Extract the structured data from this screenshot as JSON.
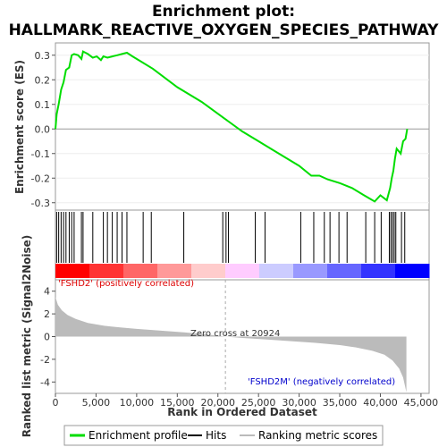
{
  "chart_data": {
    "type": "line",
    "title_line1": "Enrichment plot:",
    "title_line2": "HALLMARK_REACTIVE_OXYGEN_SPECIES_PATHWAY",
    "es_panel": {
      "ylabel": "Enrichment score (ES)",
      "ylim": [
        -0.33,
        0.35
      ],
      "yticks": [
        "0.3",
        "0.2",
        "0.1",
        "0.0",
        "-0.1",
        "-0.2",
        "-0.3"
      ],
      "ytick_values": [
        0.3,
        0.2,
        0.1,
        0.0,
        -0.1,
        -0.2,
        -0.3
      ],
      "series_color": "#00dd00",
      "points": [
        [
          0,
          0.0
        ],
        [
          150,
          0.06
        ],
        [
          400,
          0.1
        ],
        [
          700,
          0.16
        ],
        [
          1000,
          0.19
        ],
        [
          1300,
          0.24
        ],
        [
          1700,
          0.25
        ],
        [
          2000,
          0.3
        ],
        [
          2300,
          0.305
        ],
        [
          2800,
          0.3
        ],
        [
          3200,
          0.285
        ],
        [
          3400,
          0.315
        ],
        [
          4000,
          0.305
        ],
        [
          4600,
          0.29
        ],
        [
          5100,
          0.295
        ],
        [
          5600,
          0.28
        ],
        [
          5900,
          0.295
        ],
        [
          6400,
          0.29
        ],
        [
          7000,
          0.295
        ],
        [
          7600,
          0.3
        ],
        [
          8200,
          0.305
        ],
        [
          8800,
          0.31
        ],
        [
          9500,
          0.295
        ],
        [
          10500,
          0.275
        ],
        [
          12000,
          0.245
        ],
        [
          15000,
          0.17
        ],
        [
          18000,
          0.11
        ],
        [
          20924,
          0.04
        ],
        [
          23000,
          -0.01
        ],
        [
          25000,
          -0.05
        ],
        [
          27000,
          -0.09
        ],
        [
          30000,
          -0.15
        ],
        [
          31500,
          -0.19
        ],
        [
          32500,
          -0.19
        ],
        [
          33500,
          -0.205
        ],
        [
          35000,
          -0.22
        ],
        [
          36500,
          -0.24
        ],
        [
          38000,
          -0.27
        ],
        [
          39300,
          -0.295
        ],
        [
          40000,
          -0.27
        ],
        [
          40800,
          -0.29
        ],
        [
          41200,
          -0.24
        ],
        [
          41400,
          -0.2
        ],
        [
          41600,
          -0.17
        ],
        [
          41800,
          -0.12
        ],
        [
          42000,
          -0.08
        ],
        [
          42500,
          -0.1
        ],
        [
          42800,
          -0.05
        ],
        [
          43100,
          -0.04
        ],
        [
          43300,
          0.0
        ]
      ]
    },
    "hits": [
      150,
      400,
      700,
      1000,
      1300,
      1700,
      2000,
      2300,
      3200,
      3400,
      4600,
      5900,
      6400,
      7000,
      7600,
      8200,
      8800,
      10800,
      11800,
      15800,
      20600,
      21000,
      21300,
      24600,
      25800,
      30200,
      31800,
      33100,
      33800,
      34900,
      35900,
      38200,
      39300,
      40100,
      41100,
      41300,
      41500,
      41700,
      41900,
      42600,
      43000
    ],
    "heatmap_colors": [
      "#ff0000",
      "#ff3333",
      "#ff6666",
      "#ff9999",
      "#ffcccc",
      "#ffccff",
      "#ccccff",
      "#9999ff",
      "#6666ff",
      "#3333ff",
      "#0000ff"
    ],
    "rank_panel": {
      "ylabel": "Ranked list metric (Signal2Noise)",
      "ylim": [
        -5,
        5
      ],
      "yticks": [
        "4",
        "2",
        "0",
        "-2",
        "-4"
      ],
      "ytick_values": [
        4,
        2,
        0,
        -2,
        -4
      ],
      "curve": [
        [
          0,
          3.5
        ],
        [
          300,
          2.8
        ],
        [
          800,
          2.3
        ],
        [
          1500,
          1.9
        ],
        [
          2500,
          1.55
        ],
        [
          4000,
          1.2
        ],
        [
          6000,
          0.95
        ],
        [
          8000,
          0.8
        ],
        [
          10000,
          0.68
        ],
        [
          13000,
          0.52
        ],
        [
          16000,
          0.36
        ],
        [
          19000,
          0.16
        ],
        [
          20924,
          0.0
        ],
        [
          23000,
          -0.12
        ],
        [
          26000,
          -0.26
        ],
        [
          29000,
          -0.4
        ],
        [
          32000,
          -0.55
        ],
        [
          35000,
          -0.75
        ],
        [
          37000,
          -0.95
        ],
        [
          39000,
          -1.25
        ],
        [
          40500,
          -1.6
        ],
        [
          41500,
          -2.1
        ],
        [
          42300,
          -2.8
        ],
        [
          42800,
          -3.6
        ],
        [
          43200,
          -4.9
        ]
      ],
      "fill_color": "#bbbbbb",
      "pos_label": "'FSHD2' (positively correlated)",
      "neg_label": "'FSHD2M' (negatively correlated)",
      "zero_cross_label": "Zero cross at 20924",
      "zero_cross": 20924
    },
    "x_axis": {
      "label": "Rank in Ordered Dataset",
      "xlim": [
        0,
        46000
      ],
      "ticks": [
        "0",
        "5,000",
        "10,000",
        "15,000",
        "20,000",
        "25,000",
        "30,000",
        "35,000",
        "40,000",
        "45,000"
      ],
      "tick_values": [
        0,
        5000,
        10000,
        15000,
        20000,
        25000,
        30000,
        35000,
        40000,
        45000
      ]
    },
    "legend": [
      {
        "label": "Enrichment profile",
        "color": "#00dd00"
      },
      {
        "label": "Hits",
        "color": "#000000"
      },
      {
        "label": "Ranking metric scores",
        "color": "#bbbbbb"
      }
    ]
  }
}
